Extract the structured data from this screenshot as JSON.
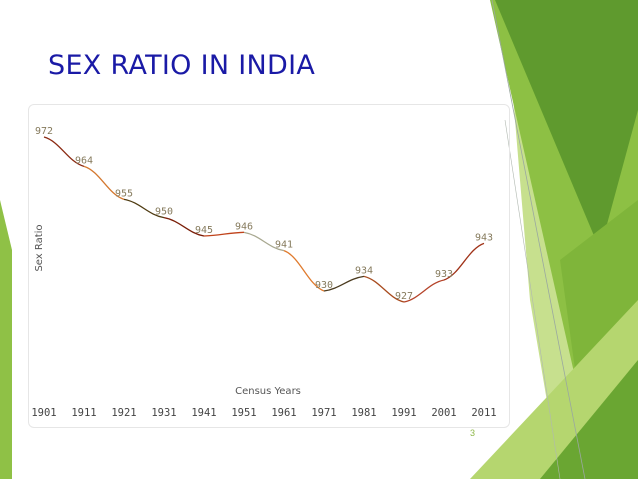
{
  "slide": {
    "title": "SEX RATIO IN INDIA",
    "page_number": "3",
    "colors": {
      "title": "#1a1aa6",
      "decor_dark_green": "#5f9a2e",
      "decor_mid_green": "#86bd3f",
      "decor_light_green": "#c7e08e",
      "page_number": "#8fb84a"
    }
  },
  "chart_data": {
    "type": "line",
    "title": "",
    "xlabel": "Census Years",
    "ylabel": "Sex Ratio",
    "categories": [
      "1901",
      "1911",
      "1921",
      "1931",
      "1941",
      "1951",
      "1961",
      "1971",
      "1981",
      "1991",
      "2001",
      "2011"
    ],
    "series": [
      {
        "values": [
          972,
          964,
          955,
          950,
          945,
          946,
          941,
          930,
          934,
          927,
          933,
          943
        ]
      }
    ],
    "data_labels": [
      "972",
      "964",
      "955",
      "950",
      "945",
      "946",
      "941",
      "930",
      "934",
      "927",
      "933",
      "943"
    ],
    "ylim": [
      920,
      975
    ],
    "grid": false,
    "legend": "none",
    "segment_colors": [
      "#8b2a12",
      "#d4782f",
      "#4e3a10",
      "#7a1e08",
      "#c0421a",
      "#a8a890",
      "#e07b2e",
      "#4a3a1e",
      "#a84b1e",
      "#b5442a",
      "#a03218"
    ],
    "label_color": "#857a5c"
  }
}
